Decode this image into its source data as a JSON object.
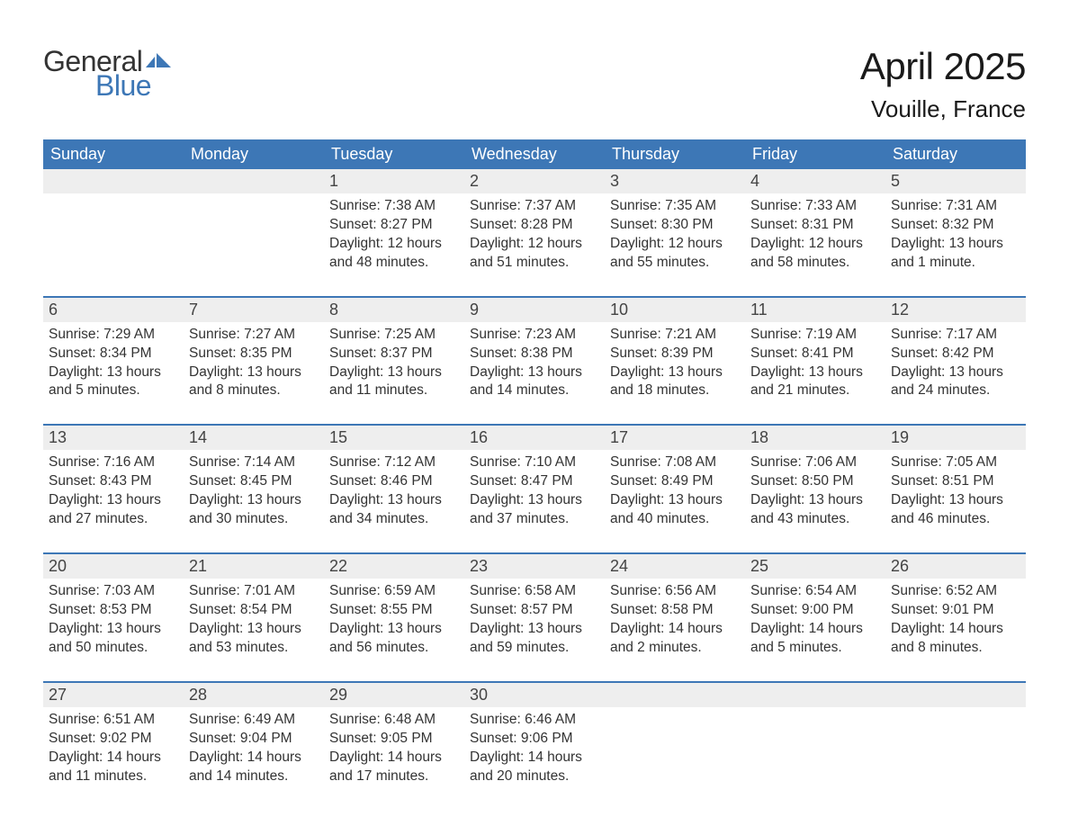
{
  "logo": {
    "text_general": "General",
    "text_blue": "Blue",
    "flag_color": "#3d77b6"
  },
  "header": {
    "month_title": "April 2025",
    "location": "Vouille, France"
  },
  "colors": {
    "header_bg": "#3d77b6",
    "header_text": "#ffffff",
    "daynum_bg": "#eeeeee",
    "text": "#333333",
    "week_border": "#3d77b6",
    "page_bg": "#ffffff"
  },
  "typography": {
    "month_title_fontsize": 42,
    "location_fontsize": 26,
    "weekday_fontsize": 18,
    "daynum_fontsize": 18,
    "body_fontsize": 15.5,
    "font_family": "Arial"
  },
  "weekdays": [
    "Sunday",
    "Monday",
    "Tuesday",
    "Wednesday",
    "Thursday",
    "Friday",
    "Saturday"
  ],
  "weeks": [
    {
      "days": [
        {
          "num": "",
          "sunrise": "",
          "sunset": "",
          "daylight1": "",
          "daylight2": ""
        },
        {
          "num": "",
          "sunrise": "",
          "sunset": "",
          "daylight1": "",
          "daylight2": ""
        },
        {
          "num": "1",
          "sunrise": "Sunrise: 7:38 AM",
          "sunset": "Sunset: 8:27 PM",
          "daylight1": "Daylight: 12 hours",
          "daylight2": "and 48 minutes."
        },
        {
          "num": "2",
          "sunrise": "Sunrise: 7:37 AM",
          "sunset": "Sunset: 8:28 PM",
          "daylight1": "Daylight: 12 hours",
          "daylight2": "and 51 minutes."
        },
        {
          "num": "3",
          "sunrise": "Sunrise: 7:35 AM",
          "sunset": "Sunset: 8:30 PM",
          "daylight1": "Daylight: 12 hours",
          "daylight2": "and 55 minutes."
        },
        {
          "num": "4",
          "sunrise": "Sunrise: 7:33 AM",
          "sunset": "Sunset: 8:31 PM",
          "daylight1": "Daylight: 12 hours",
          "daylight2": "and 58 minutes."
        },
        {
          "num": "5",
          "sunrise": "Sunrise: 7:31 AM",
          "sunset": "Sunset: 8:32 PM",
          "daylight1": "Daylight: 13 hours",
          "daylight2": "and 1 minute."
        }
      ]
    },
    {
      "days": [
        {
          "num": "6",
          "sunrise": "Sunrise: 7:29 AM",
          "sunset": "Sunset: 8:34 PM",
          "daylight1": "Daylight: 13 hours",
          "daylight2": "and 5 minutes."
        },
        {
          "num": "7",
          "sunrise": "Sunrise: 7:27 AM",
          "sunset": "Sunset: 8:35 PM",
          "daylight1": "Daylight: 13 hours",
          "daylight2": "and 8 minutes."
        },
        {
          "num": "8",
          "sunrise": "Sunrise: 7:25 AM",
          "sunset": "Sunset: 8:37 PM",
          "daylight1": "Daylight: 13 hours",
          "daylight2": "and 11 minutes."
        },
        {
          "num": "9",
          "sunrise": "Sunrise: 7:23 AM",
          "sunset": "Sunset: 8:38 PM",
          "daylight1": "Daylight: 13 hours",
          "daylight2": "and 14 minutes."
        },
        {
          "num": "10",
          "sunrise": "Sunrise: 7:21 AM",
          "sunset": "Sunset: 8:39 PM",
          "daylight1": "Daylight: 13 hours",
          "daylight2": "and 18 minutes."
        },
        {
          "num": "11",
          "sunrise": "Sunrise: 7:19 AM",
          "sunset": "Sunset: 8:41 PM",
          "daylight1": "Daylight: 13 hours",
          "daylight2": "and 21 minutes."
        },
        {
          "num": "12",
          "sunrise": "Sunrise: 7:17 AM",
          "sunset": "Sunset: 8:42 PM",
          "daylight1": "Daylight: 13 hours",
          "daylight2": "and 24 minutes."
        }
      ]
    },
    {
      "days": [
        {
          "num": "13",
          "sunrise": "Sunrise: 7:16 AM",
          "sunset": "Sunset: 8:43 PM",
          "daylight1": "Daylight: 13 hours",
          "daylight2": "and 27 minutes."
        },
        {
          "num": "14",
          "sunrise": "Sunrise: 7:14 AM",
          "sunset": "Sunset: 8:45 PM",
          "daylight1": "Daylight: 13 hours",
          "daylight2": "and 30 minutes."
        },
        {
          "num": "15",
          "sunrise": "Sunrise: 7:12 AM",
          "sunset": "Sunset: 8:46 PM",
          "daylight1": "Daylight: 13 hours",
          "daylight2": "and 34 minutes."
        },
        {
          "num": "16",
          "sunrise": "Sunrise: 7:10 AM",
          "sunset": "Sunset: 8:47 PM",
          "daylight1": "Daylight: 13 hours",
          "daylight2": "and 37 minutes."
        },
        {
          "num": "17",
          "sunrise": "Sunrise: 7:08 AM",
          "sunset": "Sunset: 8:49 PM",
          "daylight1": "Daylight: 13 hours",
          "daylight2": "and 40 minutes."
        },
        {
          "num": "18",
          "sunrise": "Sunrise: 7:06 AM",
          "sunset": "Sunset: 8:50 PM",
          "daylight1": "Daylight: 13 hours",
          "daylight2": "and 43 minutes."
        },
        {
          "num": "19",
          "sunrise": "Sunrise: 7:05 AM",
          "sunset": "Sunset: 8:51 PM",
          "daylight1": "Daylight: 13 hours",
          "daylight2": "and 46 minutes."
        }
      ]
    },
    {
      "days": [
        {
          "num": "20",
          "sunrise": "Sunrise: 7:03 AM",
          "sunset": "Sunset: 8:53 PM",
          "daylight1": "Daylight: 13 hours",
          "daylight2": "and 50 minutes."
        },
        {
          "num": "21",
          "sunrise": "Sunrise: 7:01 AM",
          "sunset": "Sunset: 8:54 PM",
          "daylight1": "Daylight: 13 hours",
          "daylight2": "and 53 minutes."
        },
        {
          "num": "22",
          "sunrise": "Sunrise: 6:59 AM",
          "sunset": "Sunset: 8:55 PM",
          "daylight1": "Daylight: 13 hours",
          "daylight2": "and 56 minutes."
        },
        {
          "num": "23",
          "sunrise": "Sunrise: 6:58 AM",
          "sunset": "Sunset: 8:57 PM",
          "daylight1": "Daylight: 13 hours",
          "daylight2": "and 59 minutes."
        },
        {
          "num": "24",
          "sunrise": "Sunrise: 6:56 AM",
          "sunset": "Sunset: 8:58 PM",
          "daylight1": "Daylight: 14 hours",
          "daylight2": "and 2 minutes."
        },
        {
          "num": "25",
          "sunrise": "Sunrise: 6:54 AM",
          "sunset": "Sunset: 9:00 PM",
          "daylight1": "Daylight: 14 hours",
          "daylight2": "and 5 minutes."
        },
        {
          "num": "26",
          "sunrise": "Sunrise: 6:52 AM",
          "sunset": "Sunset: 9:01 PM",
          "daylight1": "Daylight: 14 hours",
          "daylight2": "and 8 minutes."
        }
      ]
    },
    {
      "days": [
        {
          "num": "27",
          "sunrise": "Sunrise: 6:51 AM",
          "sunset": "Sunset: 9:02 PM",
          "daylight1": "Daylight: 14 hours",
          "daylight2": "and 11 minutes."
        },
        {
          "num": "28",
          "sunrise": "Sunrise: 6:49 AM",
          "sunset": "Sunset: 9:04 PM",
          "daylight1": "Daylight: 14 hours",
          "daylight2": "and 14 minutes."
        },
        {
          "num": "29",
          "sunrise": "Sunrise: 6:48 AM",
          "sunset": "Sunset: 9:05 PM",
          "daylight1": "Daylight: 14 hours",
          "daylight2": "and 17 minutes."
        },
        {
          "num": "30",
          "sunrise": "Sunrise: 6:46 AM",
          "sunset": "Sunset: 9:06 PM",
          "daylight1": "Daylight: 14 hours",
          "daylight2": "and 20 minutes."
        },
        {
          "num": "",
          "sunrise": "",
          "sunset": "",
          "daylight1": "",
          "daylight2": ""
        },
        {
          "num": "",
          "sunrise": "",
          "sunset": "",
          "daylight1": "",
          "daylight2": ""
        },
        {
          "num": "",
          "sunrise": "",
          "sunset": "",
          "daylight1": "",
          "daylight2": ""
        }
      ]
    }
  ]
}
